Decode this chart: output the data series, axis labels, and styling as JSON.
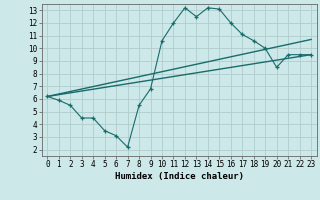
{
  "xlabel": "Humidex (Indice chaleur)",
  "xlim": [
    -0.5,
    23.5
  ],
  "ylim": [
    1.5,
    13.5
  ],
  "xticks": [
    0,
    1,
    2,
    3,
    4,
    5,
    6,
    7,
    8,
    9,
    10,
    11,
    12,
    13,
    14,
    15,
    16,
    17,
    18,
    19,
    20,
    21,
    22,
    23
  ],
  "yticks": [
    2,
    3,
    4,
    5,
    6,
    7,
    8,
    9,
    10,
    11,
    12,
    13
  ],
  "bg_color": "#cce8e8",
  "grid_color": "#b0cccc",
  "line_color": "#1a6b6b",
  "zigzag_x": [
    0,
    1,
    2,
    3,
    4,
    5,
    6,
    7,
    8,
    9,
    10,
    11,
    12,
    13,
    14,
    15,
    16,
    17,
    18,
    19,
    20,
    21,
    22,
    23
  ],
  "zigzag_y": [
    6.2,
    5.9,
    5.5,
    4.5,
    4.5,
    3.5,
    3.1,
    2.2,
    5.5,
    6.8,
    10.6,
    12.0,
    13.2,
    12.5,
    13.2,
    13.1,
    12.0,
    11.1,
    10.6,
    10.0,
    8.5,
    9.5,
    9.5,
    9.5
  ],
  "line1_x": [
    0,
    23
  ],
  "line1_y": [
    6.2,
    10.7
  ],
  "line2_x": [
    0,
    23
  ],
  "line2_y": [
    6.2,
    9.5
  ]
}
